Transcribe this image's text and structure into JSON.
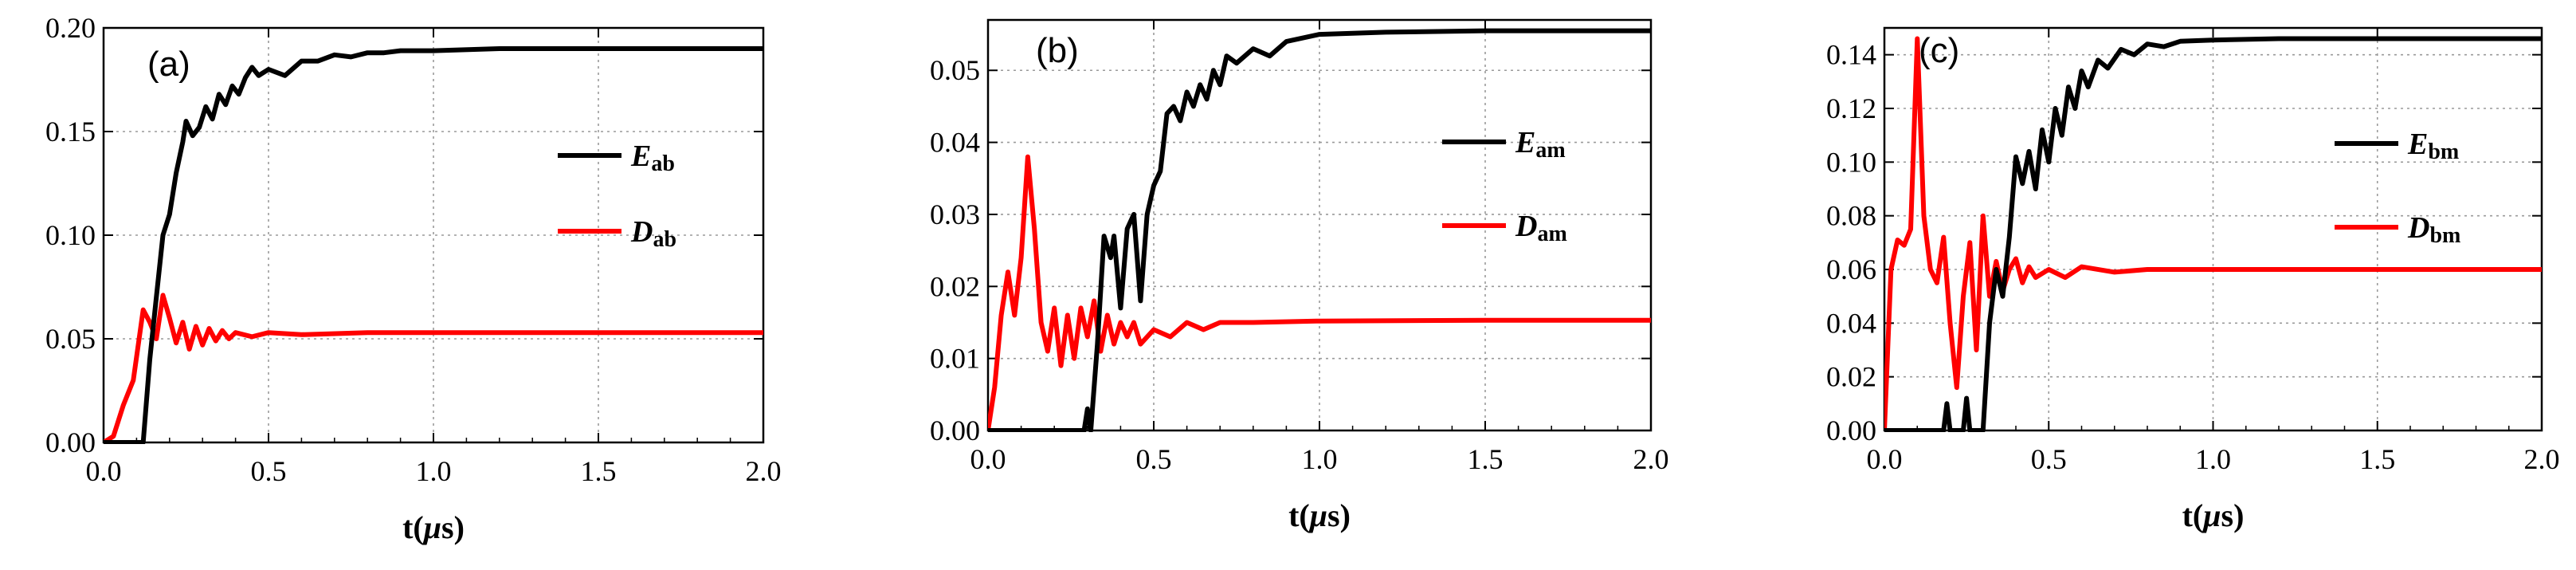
{
  "chart_data": [
    {
      "type": "line",
      "panel_label": "(a)",
      "xlabel_prefix": "t(",
      "xlabel_mu": "μ",
      "xlabel_suffix": "s)",
      "xlim": [
        0,
        2.0
      ],
      "ylim": [
        0,
        0.2
      ],
      "xticks": [
        "0.0",
        "0.5",
        "1.0",
        "1.5",
        "2.0"
      ],
      "yticks": [
        "0.00",
        "0.05",
        "0.10",
        "0.15",
        "0.20"
      ],
      "grid": true,
      "legend_position": "right",
      "series": [
        {
          "name": "E",
          "name_sub": "ab",
          "color": "#000000",
          "points": [
            [
              0,
              0
            ],
            [
              0.05,
              0
            ],
            [
              0.1,
              0
            ],
            [
              0.12,
              0
            ],
            [
              0.14,
              0.04
            ],
            [
              0.16,
              0.07
            ],
            [
              0.18,
              0.1
            ],
            [
              0.2,
              0.11
            ],
            [
              0.22,
              0.13
            ],
            [
              0.24,
              0.145
            ],
            [
              0.25,
              0.155
            ],
            [
              0.27,
              0.148
            ],
            [
              0.29,
              0.152
            ],
            [
              0.31,
              0.162
            ],
            [
              0.33,
              0.156
            ],
            [
              0.35,
              0.168
            ],
            [
              0.37,
              0.163
            ],
            [
              0.39,
              0.172
            ],
            [
              0.41,
              0.168
            ],
            [
              0.43,
              0.176
            ],
            [
              0.45,
              0.181
            ],
            [
              0.47,
              0.177
            ],
            [
              0.5,
              0.18
            ],
            [
              0.55,
              0.177
            ],
            [
              0.6,
              0.184
            ],
            [
              0.65,
              0.184
            ],
            [
              0.7,
              0.187
            ],
            [
              0.75,
              0.186
            ],
            [
              0.8,
              0.188
            ],
            [
              0.85,
              0.188
            ],
            [
              0.9,
              0.189
            ],
            [
              1.0,
              0.189
            ],
            [
              1.2,
              0.19
            ],
            [
              1.5,
              0.19
            ],
            [
              2.0,
              0.19
            ]
          ]
        },
        {
          "name": "D",
          "name_sub": "ab",
          "color": "#ff0000",
          "points": [
            [
              0,
              0
            ],
            [
              0.03,
              0.003
            ],
            [
              0.06,
              0.018
            ],
            [
              0.09,
              0.03
            ],
            [
              0.12,
              0.064
            ],
            [
              0.14,
              0.058
            ],
            [
              0.16,
              0.05
            ],
            [
              0.18,
              0.071
            ],
            [
              0.2,
              0.06
            ],
            [
              0.22,
              0.048
            ],
            [
              0.24,
              0.058
            ],
            [
              0.26,
              0.045
            ],
            [
              0.28,
              0.056
            ],
            [
              0.3,
              0.047
            ],
            [
              0.32,
              0.055
            ],
            [
              0.34,
              0.049
            ],
            [
              0.36,
              0.054
            ],
            [
              0.38,
              0.05
            ],
            [
              0.4,
              0.053
            ],
            [
              0.45,
              0.051
            ],
            [
              0.5,
              0.053
            ],
            [
              0.6,
              0.052
            ],
            [
              0.8,
              0.053
            ],
            [
              1.0,
              0.053
            ],
            [
              1.5,
              0.053
            ],
            [
              2.0,
              0.053
            ]
          ]
        }
      ]
    },
    {
      "type": "line",
      "panel_label": "(b)",
      "xlabel_prefix": "t(",
      "xlabel_mu": "μ",
      "xlabel_suffix": "s)",
      "xlim": [
        0,
        2.0
      ],
      "ylim": [
        0,
        0.057
      ],
      "xticks": [
        "0.0",
        "0.5",
        "1.0",
        "1.5",
        "2.0"
      ],
      "yticks": [
        "0.00",
        "0.01",
        "0.02",
        "0.03",
        "0.04",
        "0.05"
      ],
      "grid": true,
      "legend_position": "right",
      "series": [
        {
          "name": "E",
          "name_sub": "am",
          "color": "#000000",
          "points": [
            [
              0,
              0
            ],
            [
              0.1,
              0
            ],
            [
              0.2,
              0
            ],
            [
              0.29,
              0
            ],
            [
              0.3,
              0.003
            ],
            [
              0.31,
              0.0
            ],
            [
              0.33,
              0.012
            ],
            [
              0.35,
              0.027
            ],
            [
              0.37,
              0.024
            ],
            [
              0.38,
              0.027
            ],
            [
              0.4,
              0.017
            ],
            [
              0.42,
              0.028
            ],
            [
              0.44,
              0.03
            ],
            [
              0.46,
              0.018
            ],
            [
              0.48,
              0.03
            ],
            [
              0.5,
              0.034
            ],
            [
              0.52,
              0.036
            ],
            [
              0.54,
              0.044
            ],
            [
              0.56,
              0.045
            ],
            [
              0.58,
              0.043
            ],
            [
              0.6,
              0.047
            ],
            [
              0.62,
              0.045
            ],
            [
              0.64,
              0.048
            ],
            [
              0.66,
              0.046
            ],
            [
              0.68,
              0.05
            ],
            [
              0.7,
              0.048
            ],
            [
              0.72,
              0.052
            ],
            [
              0.75,
              0.051
            ],
            [
              0.8,
              0.053
            ],
            [
              0.85,
              0.052
            ],
            [
              0.9,
              0.054
            ],
            [
              1.0,
              0.055
            ],
            [
              1.2,
              0.0553
            ],
            [
              1.5,
              0.0555
            ],
            [
              2.0,
              0.0555
            ]
          ]
        },
        {
          "name": "D",
          "name_sub": "am",
          "color": "#ff0000",
          "points": [
            [
              0,
              0
            ],
            [
              0.02,
              0.006
            ],
            [
              0.04,
              0.016
            ],
            [
              0.06,
              0.022
            ],
            [
              0.08,
              0.016
            ],
            [
              0.1,
              0.024
            ],
            [
              0.12,
              0.038
            ],
            [
              0.14,
              0.028
            ],
            [
              0.16,
              0.015
            ],
            [
              0.18,
              0.011
            ],
            [
              0.2,
              0.017
            ],
            [
              0.22,
              0.009
            ],
            [
              0.24,
              0.016
            ],
            [
              0.26,
              0.01
            ],
            [
              0.28,
              0.017
            ],
            [
              0.3,
              0.013
            ],
            [
              0.32,
              0.018
            ],
            [
              0.34,
              0.011
            ],
            [
              0.36,
              0.016
            ],
            [
              0.38,
              0.012
            ],
            [
              0.4,
              0.015
            ],
            [
              0.42,
              0.013
            ],
            [
              0.44,
              0.015
            ],
            [
              0.46,
              0.012
            ],
            [
              0.5,
              0.014
            ],
            [
              0.55,
              0.013
            ],
            [
              0.6,
              0.015
            ],
            [
              0.65,
              0.014
            ],
            [
              0.7,
              0.015
            ],
            [
              0.8,
              0.015
            ],
            [
              1.0,
              0.0152
            ],
            [
              1.5,
              0.0153
            ],
            [
              2.0,
              0.0153
            ]
          ]
        }
      ]
    },
    {
      "type": "line",
      "panel_label": "(c)",
      "xlabel_prefix": "t(",
      "xlabel_mu": "μ",
      "xlabel_suffix": "s)",
      "xlim": [
        0,
        2.0
      ],
      "ylim": [
        0,
        0.15
      ],
      "xticks": [
        "0.0",
        "0.5",
        "1.0",
        "1.5",
        "2.0"
      ],
      "yticks": [
        "0.00",
        "0.02",
        "0.04",
        "0.06",
        "0.08",
        "0.10",
        "0.12",
        "0.14"
      ],
      "grid": true,
      "legend_position": "right",
      "series": [
        {
          "name": "E",
          "name_sub": "bm",
          "color": "#000000",
          "points": [
            [
              0,
              0
            ],
            [
              0.1,
              0
            ],
            [
              0.18,
              0
            ],
            [
              0.19,
              0.01
            ],
            [
              0.2,
              0
            ],
            [
              0.24,
              0
            ],
            [
              0.25,
              0.012
            ],
            [
              0.26,
              0
            ],
            [
              0.3,
              0
            ],
            [
              0.32,
              0.04
            ],
            [
              0.34,
              0.06
            ],
            [
              0.36,
              0.05
            ],
            [
              0.38,
              0.072
            ],
            [
              0.4,
              0.102
            ],
            [
              0.42,
              0.092
            ],
            [
              0.44,
              0.104
            ],
            [
              0.46,
              0.09
            ],
            [
              0.48,
              0.112
            ],
            [
              0.5,
              0.1
            ],
            [
              0.52,
              0.12
            ],
            [
              0.54,
              0.11
            ],
            [
              0.56,
              0.128
            ],
            [
              0.58,
              0.12
            ],
            [
              0.6,
              0.134
            ],
            [
              0.62,
              0.128
            ],
            [
              0.65,
              0.138
            ],
            [
              0.68,
              0.135
            ],
            [
              0.72,
              0.142
            ],
            [
              0.76,
              0.14
            ],
            [
              0.8,
              0.144
            ],
            [
              0.85,
              0.143
            ],
            [
              0.9,
              0.145
            ],
            [
              1.0,
              0.1455
            ],
            [
              1.2,
              0.146
            ],
            [
              1.5,
              0.146
            ],
            [
              2.0,
              0.146
            ]
          ]
        },
        {
          "name": "D",
          "name_sub": "bm",
          "color": "#ff0000",
          "points": [
            [
              0,
              0
            ],
            [
              0.02,
              0.06
            ],
            [
              0.04,
              0.071
            ],
            [
              0.06,
              0.069
            ],
            [
              0.08,
              0.075
            ],
            [
              0.1,
              0.146
            ],
            [
              0.12,
              0.08
            ],
            [
              0.14,
              0.06
            ],
            [
              0.16,
              0.055
            ],
            [
              0.18,
              0.072
            ],
            [
              0.2,
              0.04
            ],
            [
              0.22,
              0.016
            ],
            [
              0.24,
              0.05
            ],
            [
              0.26,
              0.07
            ],
            [
              0.28,
              0.03
            ],
            [
              0.3,
              0.08
            ],
            [
              0.32,
              0.05
            ],
            [
              0.34,
              0.063
            ],
            [
              0.36,
              0.052
            ],
            [
              0.38,
              0.06
            ],
            [
              0.4,
              0.064
            ],
            [
              0.42,
              0.055
            ],
            [
              0.44,
              0.061
            ],
            [
              0.46,
              0.057
            ],
            [
              0.5,
              0.06
            ],
            [
              0.55,
              0.057
            ],
            [
              0.6,
              0.061
            ],
            [
              0.7,
              0.059
            ],
            [
              0.8,
              0.06
            ],
            [
              1.0,
              0.06
            ],
            [
              1.5,
              0.06
            ],
            [
              2.0,
              0.06
            ]
          ]
        }
      ]
    }
  ]
}
